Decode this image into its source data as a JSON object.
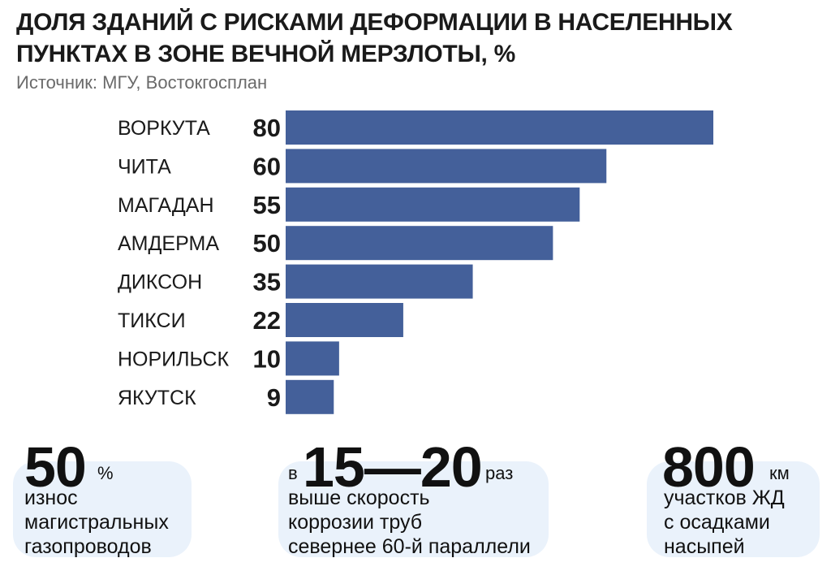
{
  "header": {
    "title_line1": "ДОЛЯ ЗДАНИЙ С РИСКАМИ ДЕФОРМАЦИИ В НАСЕЛЕННЫХ",
    "title_line2": "ПУНКТАХ В ЗОНЕ ВЕЧНОЙ МЕРЗЛОТЫ, %",
    "source": "Источник: МГУ, Востокгосплан"
  },
  "colors": {
    "bar": "#44609a",
    "stat_background": "#eaf2fb"
  },
  "chart_data": {
    "type": "bar",
    "orientation": "horizontal",
    "title": "ДОЛЯ ЗДАНИЙ С РИСКАМИ ДЕФОРМАЦИИ В НАСЕЛЕННЫХ ПУНКТАХ В ЗОНЕ ВЕЧНОЙ МЕРЗЛОТЫ, %",
    "categories": [
      "ВОРКУТА",
      "ЧИТА",
      "МАГАДАН",
      "АМДЕРМА",
      "ДИКСОН",
      "ТИКСИ",
      "НОРИЛЬСК",
      "ЯКУТСК"
    ],
    "values": [
      80,
      60,
      55,
      50,
      35,
      22,
      10,
      9
    ],
    "data_labels": [
      "80",
      "60",
      "55",
      "50",
      "35",
      "22",
      "10",
      "9"
    ],
    "xlim": [
      0,
      80
    ],
    "grid": false,
    "legend": "none"
  },
  "stats": [
    {
      "value": "50",
      "unit": "%",
      "prefix": "",
      "lines": [
        "износ",
        "магистральных",
        "газопроводов"
      ]
    },
    {
      "value": "15—20",
      "unit": "раз",
      "prefix": "в",
      "lines": [
        "выше скорость",
        "коррозии труб",
        "севернее 60-й параллели"
      ]
    },
    {
      "value": "800",
      "unit": "км",
      "prefix": "",
      "lines": [
        "участков ЖД",
        "с осадками",
        "насыпей"
      ]
    }
  ]
}
